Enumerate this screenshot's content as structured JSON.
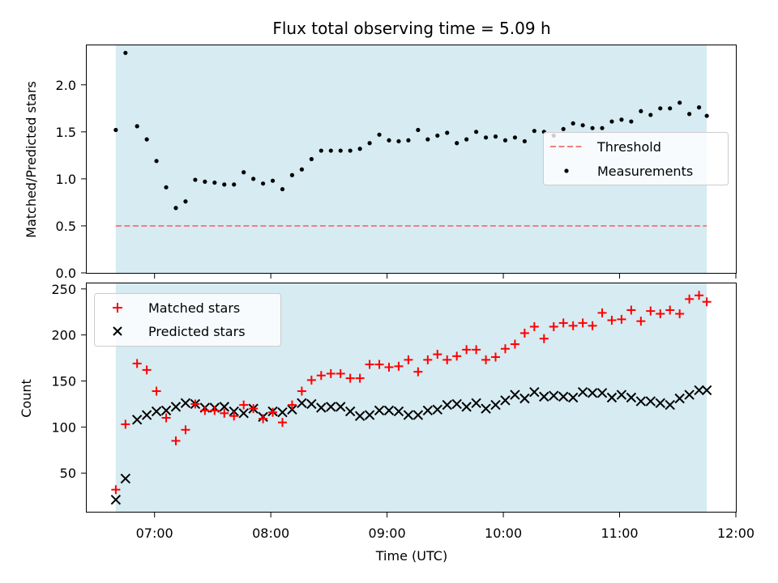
{
  "chart_data": [
    {
      "type": "scatter",
      "title": "Flux total observing time = 5.09 h",
      "ylabel": "Matched/Predicted stars",
      "xlabel": "",
      "xlim": [
        "06:25",
        "12:00"
      ],
      "ylim": [
        0,
        2.42
      ],
      "yticks": [
        0.0,
        0.5,
        1.0,
        1.5,
        2.0
      ],
      "ytick_labels": [
        "0.0",
        "0.5",
        "1.0",
        "1.5",
        "2.0"
      ],
      "observing_window": [
        "06:40",
        "11:45"
      ],
      "legend_position": "center-right",
      "threshold": {
        "name": "Threshold",
        "value": 0.5,
        "style": "dashed",
        "color": "#f08080"
      },
      "series": [
        {
          "name": "Measurements",
          "color": "#000000",
          "x": [
            "06:40",
            "06:45",
            "06:51",
            "06:56",
            "07:01",
            "07:06",
            "07:11",
            "07:16",
            "07:21",
            "07:26",
            "07:31",
            "07:36",
            "07:41",
            "07:46",
            "07:51",
            "07:56",
            "08:01",
            "08:06",
            "08:11",
            "08:16",
            "08:21",
            "08:26",
            "08:31",
            "08:36",
            "08:41",
            "08:46",
            "08:51",
            "08:56",
            "09:01",
            "09:06",
            "09:11",
            "09:16",
            "09:21",
            "09:26",
            "09:31",
            "09:36",
            "09:41",
            "09:46",
            "09:51",
            "09:56",
            "10:01",
            "10:06",
            "10:11",
            "10:16",
            "10:21",
            "10:26",
            "10:31",
            "10:36",
            "10:41",
            "10:46",
            "10:51",
            "10:56",
            "11:01",
            "11:06",
            "11:11",
            "11:16",
            "11:21",
            "11:26",
            "11:31",
            "11:36",
            "11:41",
            "11:45"
          ],
          "y": [
            1.52,
            2.34,
            1.56,
            1.42,
            1.19,
            0.91,
            0.69,
            0.76,
            0.99,
            0.97,
            0.96,
            0.94,
            0.94,
            1.07,
            1.0,
            0.95,
            0.98,
            0.89,
            1.04,
            1.1,
            1.21,
            1.3,
            1.3,
            1.3,
            1.3,
            1.32,
            1.38,
            1.47,
            1.41,
            1.4,
            1.41,
            1.52,
            1.42,
            1.46,
            1.49,
            1.38,
            1.42,
            1.5,
            1.44,
            1.45,
            1.41,
            1.44,
            1.4,
            1.51,
            1.5,
            1.46,
            1.53,
            1.59,
            1.57,
            1.54,
            1.54,
            1.61,
            1.63,
            1.61,
            1.72,
            1.68,
            1.75,
            1.75,
            1.81,
            1.69,
            1.76,
            1.67
          ]
        }
      ]
    },
    {
      "type": "scatter",
      "title": "",
      "ylabel": "Count",
      "xlabel": "Time (UTC)",
      "xlim": [
        "06:25",
        "12:00"
      ],
      "ylim": [
        8,
        256
      ],
      "xticks": [
        "07:00",
        "08:00",
        "09:00",
        "10:00",
        "11:00",
        "12:00"
      ],
      "yticks": [
        50,
        100,
        150,
        200,
        250
      ],
      "ytick_labels": [
        "50",
        "100",
        "150",
        "200",
        "250"
      ],
      "observing_window": [
        "06:40",
        "11:45"
      ],
      "legend_position": "upper-left",
      "series": [
        {
          "name": "Matched stars",
          "marker": "plus",
          "color": "#ff0000",
          "x": [
            "06:40",
            "06:45",
            "06:51",
            "06:56",
            "07:01",
            "07:06",
            "07:11",
            "07:16",
            "07:21",
            "07:26",
            "07:31",
            "07:36",
            "07:41",
            "07:46",
            "07:51",
            "07:56",
            "08:01",
            "08:06",
            "08:11",
            "08:16",
            "08:21",
            "08:26",
            "08:31",
            "08:36",
            "08:41",
            "08:46",
            "08:51",
            "08:56",
            "09:01",
            "09:06",
            "09:11",
            "09:16",
            "09:21",
            "09:26",
            "09:31",
            "09:36",
            "09:41",
            "09:46",
            "09:51",
            "09:56",
            "10:01",
            "10:06",
            "10:11",
            "10:16",
            "10:21",
            "10:26",
            "10:31",
            "10:36",
            "10:41",
            "10:46",
            "10:51",
            "10:56",
            "11:01",
            "11:06",
            "11:11",
            "11:16",
            "11:21",
            "11:26",
            "11:31",
            "11:36",
            "11:41",
            "11:45"
          ],
          "y": [
            32,
            103,
            169,
            162,
            139,
            110,
            85,
            97,
            125,
            118,
            118,
            115,
            112,
            124,
            120,
            109,
            116,
            105,
            124,
            139,
            151,
            156,
            158,
            158,
            153,
            153,
            168,
            168,
            165,
            166,
            173,
            160,
            173,
            179,
            173,
            177,
            184,
            184,
            173,
            176,
            185,
            190,
            202,
            209,
            196,
            209,
            213,
            210,
            213,
            210,
            224,
            216,
            217,
            227,
            215,
            226,
            223,
            227,
            223,
            239,
            243,
            236
          ]
        },
        {
          "name": "Predicted stars",
          "marker": "x",
          "color": "#000000",
          "x": [
            "06:40",
            "06:45",
            "06:51",
            "06:56",
            "07:01",
            "07:06",
            "07:11",
            "07:16",
            "07:21",
            "07:26",
            "07:31",
            "07:36",
            "07:41",
            "07:46",
            "07:51",
            "07:56",
            "08:01",
            "08:06",
            "08:11",
            "08:16",
            "08:21",
            "08:26",
            "08:31",
            "08:36",
            "08:41",
            "08:46",
            "08:51",
            "08:56",
            "09:01",
            "09:06",
            "09:11",
            "09:16",
            "09:21",
            "09:26",
            "09:31",
            "09:36",
            "09:41",
            "09:46",
            "09:51",
            "09:56",
            "10:01",
            "10:06",
            "10:11",
            "10:16",
            "10:21",
            "10:26",
            "10:31",
            "10:36",
            "10:41",
            "10:46",
            "10:51",
            "10:56",
            "11:01",
            "11:06",
            "11:11",
            "11:16",
            "11:21",
            "11:26",
            "11:31",
            "11:36",
            "11:41",
            "11:45"
          ],
          "y": [
            21,
            44,
            108,
            113,
            117,
            118,
            122,
            126,
            125,
            121,
            121,
            122,
            117,
            115,
            120,
            111,
            117,
            116,
            119,
            126,
            125,
            121,
            122,
            122,
            117,
            112,
            113,
            118,
            118,
            117,
            113,
            113,
            118,
            119,
            124,
            125,
            122,
            126,
            120,
            124,
            129,
            135,
            131,
            138,
            133,
            134,
            133,
            132,
            138,
            137,
            137,
            132,
            135,
            132,
            128,
            128,
            126,
            124,
            131,
            135,
            140,
            140
          ]
        }
      ]
    }
  ]
}
